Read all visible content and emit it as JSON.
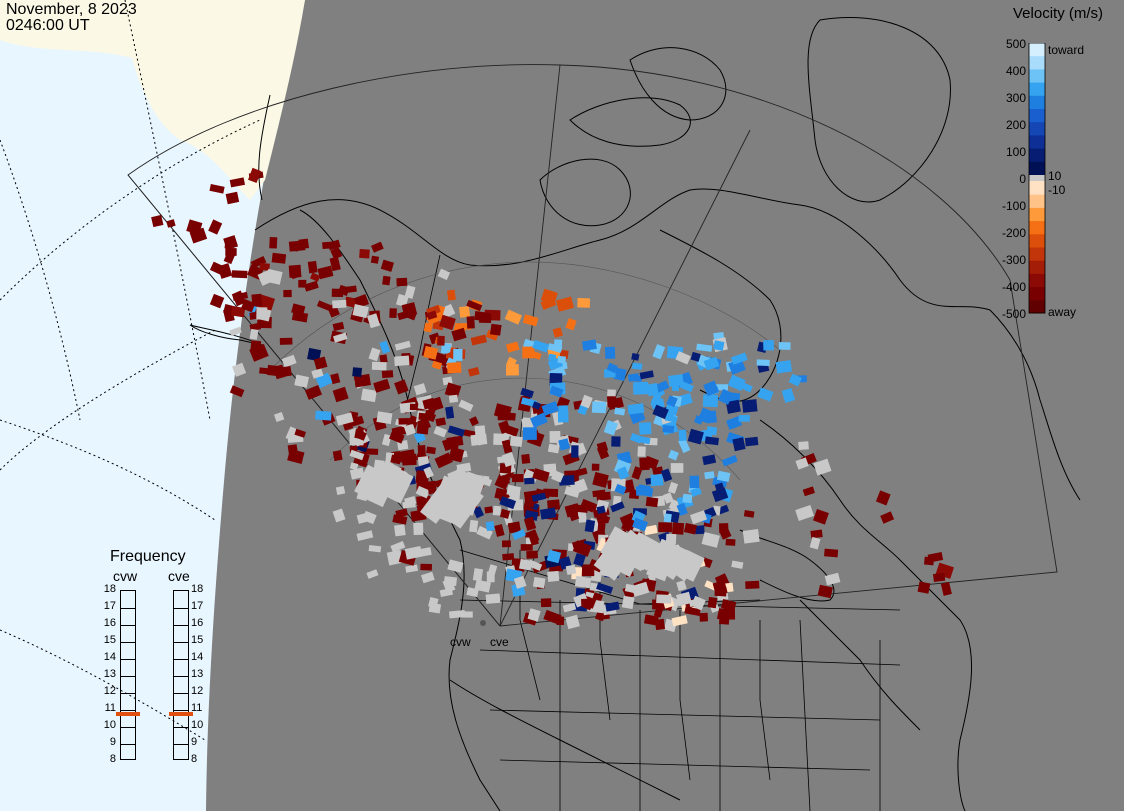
{
  "header": {
    "date": "November, 8 2023",
    "time": "0246:00 UT"
  },
  "velocity_scale": {
    "title": "Velocity (m/s)",
    "ticks": [
      "500",
      "400",
      "300",
      "200",
      "100",
      "0",
      "-100",
      "-200",
      "-300",
      "-400",
      "-500"
    ],
    "toward_label": "toward",
    "away_label": "away",
    "pos_threshold": "10",
    "neg_threshold": "-10",
    "colors": {
      "toward": [
        "#d6efff",
        "#a9dcfb",
        "#6ec3f6",
        "#35a3ef",
        "#1e7fe0",
        "#1a5fcf",
        "#1446b4",
        "#0d2f96",
        "#071d74",
        "#001055"
      ],
      "away": [
        "#ffe1c3",
        "#ffc387",
        "#ff9a3b",
        "#f57015",
        "#dc4f0a",
        "#c2350a",
        "#a41d07",
        "#8c0a05",
        "#780000",
        "#600000"
      ],
      "ground_scatter": "#c8c8c8"
    }
  },
  "frequency": {
    "title": "Frequency",
    "radars": [
      {
        "name": "cvw",
        "value_mhz": 10.7
      },
      {
        "name": "cve",
        "value_mhz": 10.7
      }
    ],
    "scale": [
      "18",
      "17",
      "16",
      "15",
      "14",
      "13",
      "12",
      "11",
      "10",
      "9",
      "8"
    ],
    "marker_color": "#e05010"
  },
  "map": {
    "radar_labels": [
      "cvw",
      "cve"
    ],
    "colors": {
      "night": "#808080",
      "day_land": "#fbf8e6",
      "day_ocean": "#e8f6ff"
    }
  }
}
